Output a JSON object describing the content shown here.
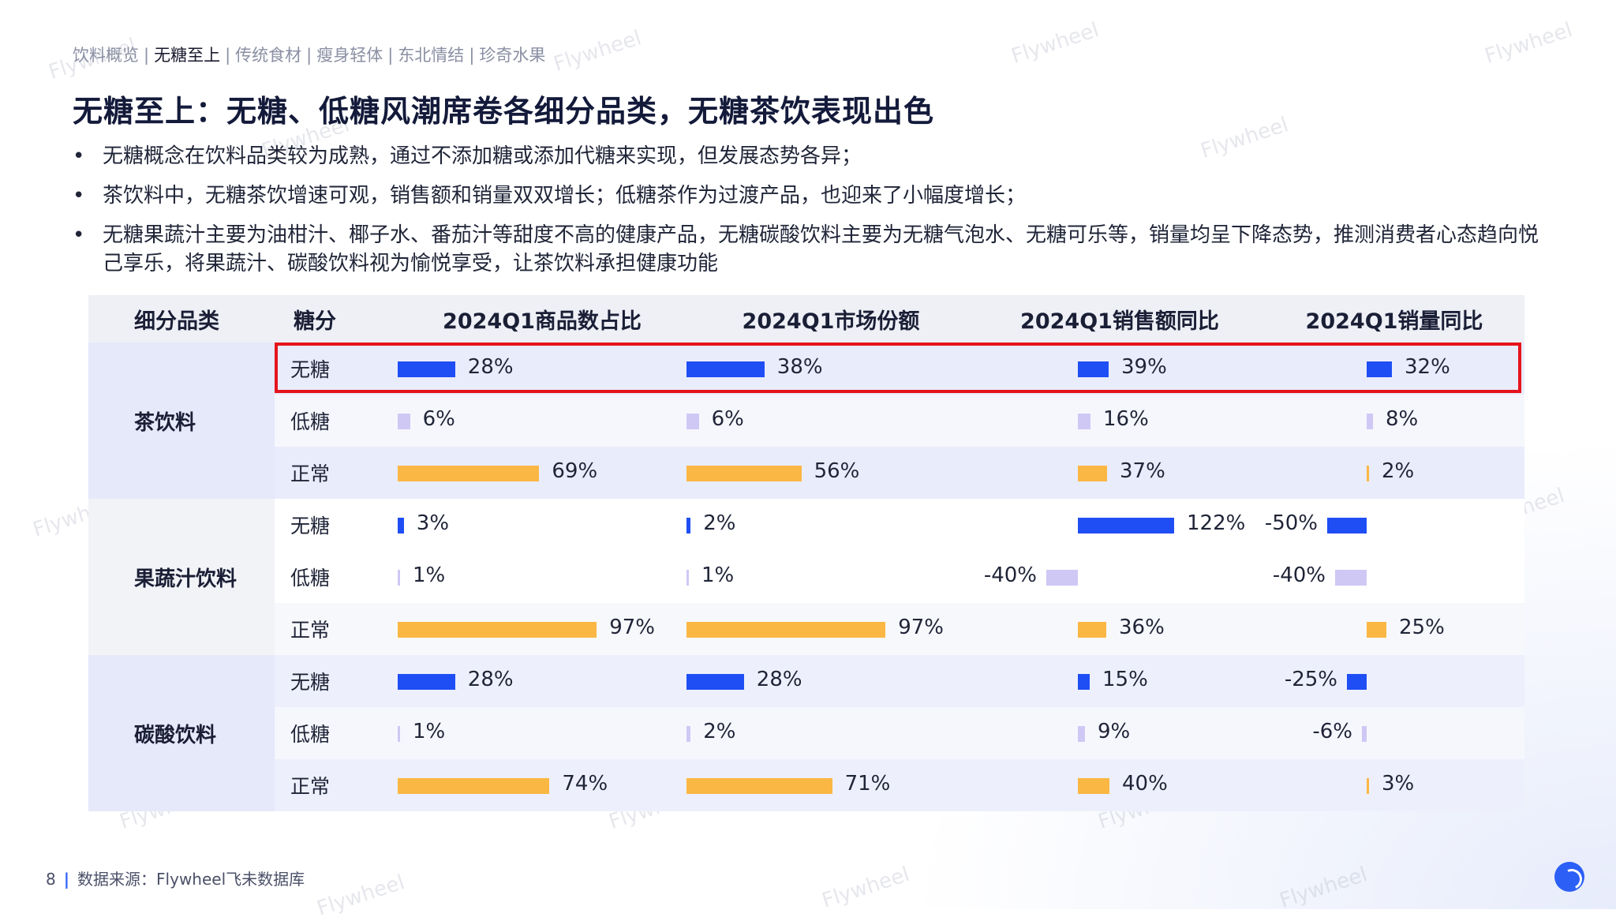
{
  "breadcrumb": [
    {
      "label": "饮料概览",
      "active": false
    },
    {
      "label": "无糖至上",
      "active": true
    },
    {
      "label": "传统食材",
      "active": false
    },
    {
      "label": "瘦身轻体",
      "active": false
    },
    {
      "label": "东北情结",
      "active": false
    },
    {
      "label": "珍奇水果",
      "active": false
    }
  ],
  "title": "无糖至上：无糖、低糖风潮席卷各细分品类，无糖茶饮表现出色",
  "bullets": [
    "无糖概念在饮料品类较为成熟，通过不添加糖或添加代糖来实现，但发展态势各异；",
    "茶饮料中，无糖茶饮增速可观，销售额和销量双双增长；低糖茶作为过渡产品，也迎来了小幅度增长；",
    "无糖果蔬汁主要为油柑汁、椰子水、番茄汁等甜度不高的健康产品，无糖碳酸饮料主要为无糖气泡水、无糖可乐等，销量均呈下降态势，推测消费者心态趋向悦己享乐，将果蔬汁、碳酸饮料视为愉悦享受，让茶饮料承担健康功能"
  ],
  "table": {
    "headers": {
      "category": "细分品类",
      "sugar": "糖分",
      "m1": "2024Q1商品数占比",
      "m2": "2024Q1市场份额",
      "m3": "2024Q1销售额同比",
      "m4": "2024Q1销量同比"
    },
    "colors": {
      "无糖": "#1f4ef5",
      "低糖": "#cfc8f5",
      "正常": "#fbb743"
    },
    "groups": [
      {
        "category": "茶饮料",
        "rows": [
          {
            "sugar": "无糖",
            "values": [
              28,
              38,
              39,
              32
            ],
            "labels": [
              "28%",
              "38%",
              "39%",
              "32%"
            ]
          },
          {
            "sugar": "低糖",
            "values": [
              6,
              6,
              16,
              8
            ],
            "labels": [
              "6%",
              "6%",
              "16%",
              "8%"
            ]
          },
          {
            "sugar": "正常",
            "values": [
              69,
              56,
              37,
              2
            ],
            "labels": [
              "69%",
              "56%",
              "37%",
              "2%"
            ]
          }
        ]
      },
      {
        "category": "果蔬汁饮料",
        "rows": [
          {
            "sugar": "无糖",
            "values": [
              3,
              2,
              122,
              -50
            ],
            "labels": [
              "3%",
              "2%",
              "122%",
              "-50%"
            ]
          },
          {
            "sugar": "低糖",
            "values": [
              1,
              1,
              -40,
              -40
            ],
            "labels": [
              "1%",
              "1%",
              "-40%",
              "-40%"
            ]
          },
          {
            "sugar": "正常",
            "values": [
              97,
              97,
              36,
              25
            ],
            "labels": [
              "97%",
              "97%",
              "36%",
              "25%"
            ]
          }
        ]
      },
      {
        "category": "碳酸饮料",
        "rows": [
          {
            "sugar": "无糖",
            "values": [
              28,
              28,
              15,
              -25
            ],
            "labels": [
              "28%",
              "28%",
              "15%",
              "-25%"
            ]
          },
          {
            "sugar": "低糖",
            "values": [
              1,
              2,
              9,
              -6
            ],
            "labels": [
              "1%",
              "2%",
              "9%",
              "-6%"
            ]
          },
          {
            "sugar": "正常",
            "values": [
              74,
              71,
              40,
              3
            ],
            "labels": [
              "74%",
              "71%",
              "40%",
              "3%"
            ]
          }
        ]
      }
    ]
  },
  "footer": {
    "page": "8",
    "source": "数据来源：Flywheel飞未数据库"
  },
  "watermark": "Flywheel"
}
